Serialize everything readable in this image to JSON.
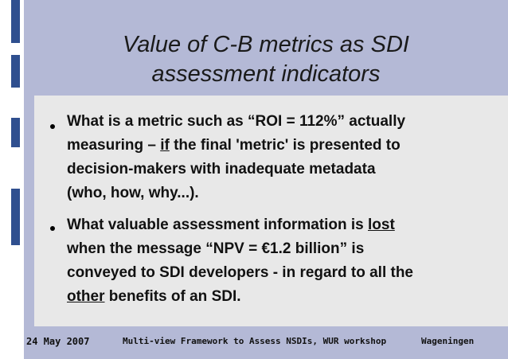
{
  "slide": {
    "title_line1": "Value of C-B metrics as SDI",
    "title_line2": "assessment indicators",
    "bullet1": {
      "line1": "What is a metric such as “ROI = 112%” actually",
      "line2_pre": "measuring – ",
      "line2_underlined": "if",
      "line2_post": " the final 'metric' is presented to",
      "line3": "decision-makers with inadequate metadata",
      "line4": "(who, how, why...)."
    },
    "bullet2": {
      "line1_pre": "What valuable assessment information is ",
      "line1_underlined": "lost",
      "line2": "when the message “NPV = €1.2 billion” is",
      "line3": "conveyed to SDI developers - in regard to all the",
      "line4_underlined": "other",
      "line4_post": " benefits of an SDI."
    },
    "footer": {
      "date": "24 May 2007",
      "event": "Multi-view Framework to Assess NSDIs, WUR workshop",
      "place": "Wageningen"
    }
  },
  "colors": {
    "background": "#b4b9d6",
    "content_panel": "#e8e8e8",
    "accent_bar": "#2f4f8f",
    "text": "#111111"
  }
}
